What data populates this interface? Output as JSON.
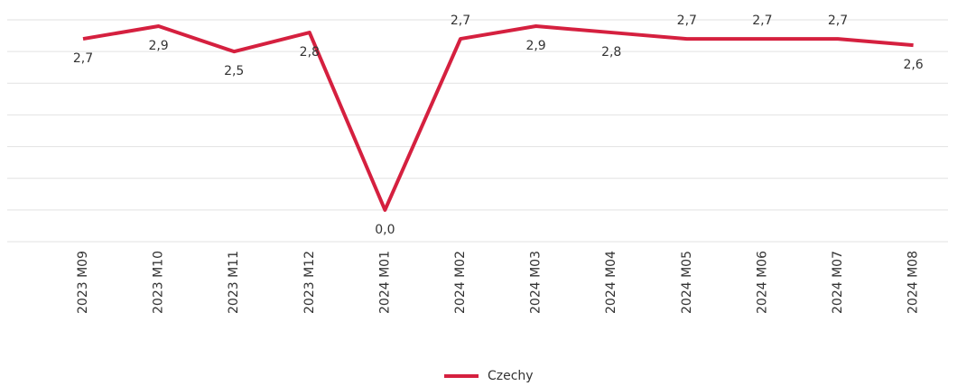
{
  "chart_data": {
    "type": "line",
    "categories": [
      "2023 M09",
      "2023 M10",
      "2023 M11",
      "2023 M12",
      "2024 M01",
      "2024 M02",
      "2024 M03",
      "2024 M04",
      "2024 M05",
      "2024 M06",
      "2024 M07",
      "2024 M08"
    ],
    "series": [
      {
        "name": "Czechy",
        "color": "#d5203f",
        "values": [
          2.7,
          2.9,
          2.5,
          2.8,
          0.0,
          2.7,
          2.9,
          2.8,
          2.7,
          2.7,
          2.7,
          2.6
        ],
        "value_labels": [
          "2,7",
          "2,9",
          "2,5",
          "2,8",
          "0,0",
          "2,7",
          "2,9",
          "2,8",
          "2,7",
          "2,7",
          "2,7",
          "2,6"
        ]
      }
    ],
    "ylim": [
      -0.5,
      3.0
    ],
    "yticks": [
      -0.5,
      0,
      0.5,
      1,
      1.5,
      2,
      2.5,
      3
    ],
    "grid": true,
    "legend": "bottom"
  }
}
